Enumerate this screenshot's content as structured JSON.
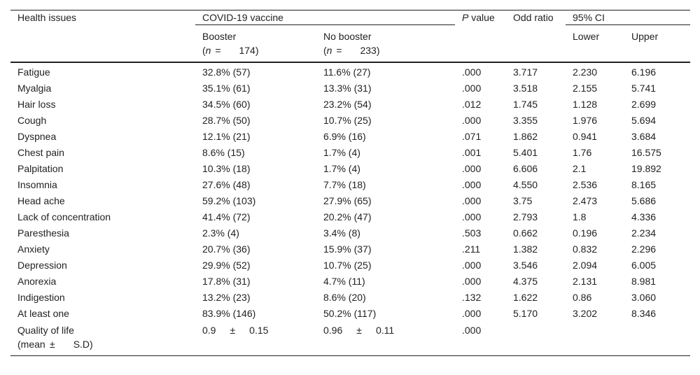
{
  "header": {
    "health_issues": "Health issues",
    "vaccine": "COVID-19 vaccine",
    "p_italic": "P",
    "p_rest": " value",
    "odd_ratio": "Odd ratio",
    "ci": "95% CI",
    "booster": "Booster",
    "booster_n_sym": "n",
    "booster_n": "174",
    "no_booster": "No booster",
    "no_booster_n_sym": "n",
    "no_booster_n": "233",
    "lower": "Lower",
    "upper": "Upper"
  },
  "rows": [
    [
      "Fatigue",
      "32.8% (57)",
      "11.6% (27)",
      ".000",
      "3.717",
      "2.230",
      "6.196"
    ],
    [
      "Myalgia",
      "35.1% (61)",
      "13.3% (31)",
      ".000",
      "3.518",
      "2.155",
      "5.741"
    ],
    [
      "Hair loss",
      "34.5% (60)",
      "23.2% (54)",
      ".012",
      "1.745",
      "1.128",
      "2.699"
    ],
    [
      "Cough",
      "28.7% (50)",
      "10.7% (25)",
      ".000",
      "3.355",
      "1.976",
      "5.694"
    ],
    [
      "Dyspnea",
      "12.1% (21)",
      "6.9% (16)",
      ".071",
      "1.862",
      "0.941",
      "3.684"
    ],
    [
      "Chest pain",
      "8.6% (15)",
      "1.7% (4)",
      ".001",
      "5.401",
      "1.76",
      "16.575"
    ],
    [
      "Palpitation",
      "10.3% (18)",
      "1.7% (4)",
      ".000",
      "6.606",
      "2.1",
      "19.892"
    ],
    [
      "Insomnia",
      "27.6% (48)",
      "7.7% (18)",
      ".000",
      "4.550",
      "2.536",
      "8.165"
    ],
    [
      "Head ache",
      "59.2% (103)",
      "27.9% (65)",
      ".000",
      "3.75",
      "2.473",
      "5.686"
    ],
    [
      "Lack of concentration",
      "41.4% (72)",
      "20.2% (47)",
      ".000",
      "2.793",
      "1.8",
      "4.336"
    ],
    [
      "Paresthesia",
      "2.3% (4)",
      "3.4% (8)",
      ".503",
      "0.662",
      "0.196",
      "2.234"
    ],
    [
      "Anxiety",
      "20.7% (36)",
      "15.9% (37)",
      ".211",
      "1.382",
      "0.832",
      "2.296"
    ],
    [
      "Depression",
      "29.9% (52)",
      "10.7% (25)",
      ".000",
      "3.546",
      "2.094",
      "6.005"
    ],
    [
      "Anorexia",
      "17.8% (31)",
      "4.7% (11)",
      ".000",
      "4.375",
      "2.131",
      "8.981"
    ],
    [
      "Indigestion",
      "13.2% (23)",
      "8.6% (20)",
      ".132",
      "1.622",
      "0.86",
      "3.060"
    ],
    [
      "At least one",
      "83.9% (146)",
      "50.2% (117)",
      ".000",
      "5.170",
      "3.202",
      "8.346"
    ]
  ],
  "qol": {
    "label1": "Quality of life",
    "label2a": "(mean",
    "pm": "±",
    "label2b": "S.D)",
    "booster_mean": "0.9",
    "booster_sd": "0.15",
    "no_booster_mean": "0.96",
    "no_booster_sd": "0.11",
    "p": ".000"
  }
}
